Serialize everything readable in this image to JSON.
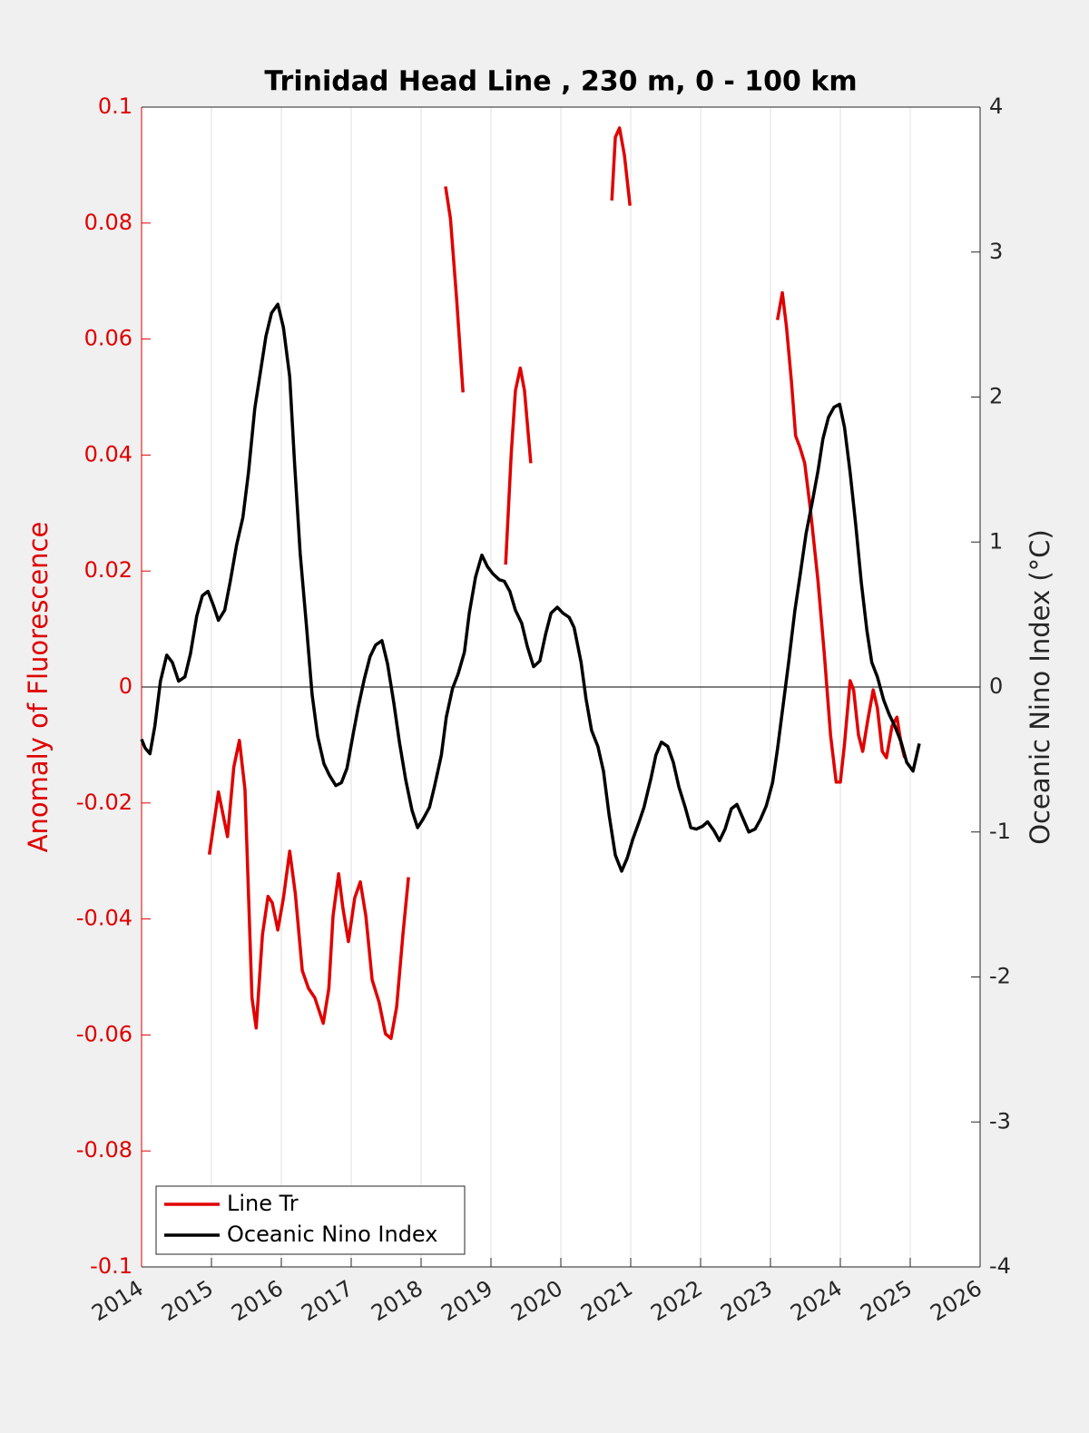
{
  "chart_data": {
    "type": "line",
    "title": "Trinidad Head Line , 230 m, 0 - 100 km",
    "ylabel": "Anomaly of Fluorescence",
    "y2label": "Oceanic Nino Index (°C)",
    "xlim": [
      2014,
      2026
    ],
    "xticks": [
      2014,
      2015,
      2016,
      2017,
      2018,
      2019,
      2020,
      2021,
      2022,
      2023,
      2024,
      2025,
      2026
    ],
    "ylim": [
      -0.1,
      0.1
    ],
    "yticks": [
      -0.1,
      -0.08,
      -0.06,
      -0.04,
      -0.02,
      0,
      0.02,
      0.04,
      0.06,
      0.08,
      0.1
    ],
    "y2lim": [
      -4,
      4
    ],
    "y2ticks": [
      -4,
      -3,
      -2,
      -1,
      0,
      1,
      2,
      3,
      4
    ],
    "xgrid": true,
    "reference_line": 0,
    "legend": "lower left",
    "series": [
      {
        "name": "Line Tr",
        "color": "#e00000",
        "axis": "y",
        "x": [
          2014.97,
          2015.1,
          2015.23,
          2015.32,
          2015.4,
          2015.48,
          2015.58,
          2015.64,
          2015.73,
          2015.81,
          2015.87,
          2015.95,
          2016.03,
          2016.12,
          2016.2,
          2016.3,
          2016.39,
          2016.48,
          2016.6,
          2016.68,
          2016.74,
          2016.82,
          2016.88,
          2016.96,
          2017.05,
          2017.13,
          2017.21,
          2017.3,
          2017.4,
          2017.49,
          2017.57,
          2017.65,
          2017.74,
          2017.82,
          2018.1,
          2018.35,
          2018.42,
          2018.51,
          2018.6,
          2018.9,
          2019.21,
          2019.29,
          2019.35,
          2019.42,
          2019.48,
          2019.57,
          2020.1,
          2020.73,
          2020.78,
          2020.84,
          2020.91,
          2020.99,
          2022.0,
          2023.1,
          2023.17,
          2023.23,
          2023.3,
          2023.36,
          2023.42,
          2023.49,
          2023.57,
          2023.68,
          2023.77,
          2023.86,
          2023.94,
          2024.0,
          2024.06,
          2024.14,
          2024.19,
          2024.26,
          2024.32,
          2024.39,
          2024.47,
          2024.53,
          2024.6,
          2024.66,
          2024.74,
          2024.81,
          2024.87,
          2024.92
        ],
        "values": [
          -0.0289,
          -0.0181,
          -0.0258,
          -0.0138,
          -0.0092,
          -0.0177,
          -0.0536,
          -0.0588,
          -0.0427,
          -0.0361,
          -0.0372,
          -0.0419,
          -0.0364,
          -0.0283,
          -0.0356,
          -0.0489,
          -0.052,
          -0.0536,
          -0.058,
          -0.052,
          -0.0395,
          -0.0322,
          -0.038,
          -0.0439,
          -0.0364,
          -0.0336,
          -0.0395,
          -0.0505,
          -0.0544,
          -0.0598,
          -0.0606,
          -0.0552,
          -0.0427,
          -0.0328,
          null,
          0.0863,
          0.0808,
          0.0667,
          0.0508,
          null,
          0.0211,
          0.0402,
          0.0511,
          0.055,
          0.0511,
          0.0386,
          null,
          0.0839,
          0.0948,
          0.0964,
          0.0917,
          0.083,
          null,
          0.0633,
          0.068,
          0.062,
          0.0527,
          0.0433,
          0.0414,
          0.0386,
          0.0308,
          0.0183,
          0.0058,
          -0.0083,
          -0.0164,
          -0.0164,
          -0.0098,
          0.0011,
          -0.0005,
          -0.0083,
          -0.0111,
          -0.0059,
          -0.0005,
          -0.0036,
          -0.0111,
          -0.0122,
          -0.0067,
          -0.0052,
          -0.0098,
          -0.0122
        ]
      },
      {
        "name": "Oceanic Nino Index",
        "color": "#000000",
        "axis": "y2",
        "x": [
          2014.0,
          2014.05,
          2014.12,
          2014.19,
          2014.27,
          2014.36,
          2014.44,
          2014.53,
          2014.62,
          2014.7,
          2014.79,
          2014.87,
          2014.95,
          2015.03,
          2015.1,
          2015.19,
          2015.27,
          2015.36,
          2015.45,
          2015.53,
          2015.62,
          2015.7,
          2015.78,
          2015.86,
          2015.95,
          2016.03,
          2016.12,
          2016.19,
          2016.27,
          2016.36,
          2016.44,
          2016.52,
          2016.61,
          2016.69,
          2016.78,
          2016.86,
          2016.94,
          2017.03,
          2017.1,
          2017.19,
          2017.27,
          2017.35,
          2017.44,
          2017.52,
          2017.61,
          2017.69,
          2017.78,
          2017.87,
          2017.95,
          2018.03,
          2018.12,
          2018.19,
          2018.29,
          2018.36,
          2018.45,
          2018.53,
          2018.62,
          2018.69,
          2018.78,
          2018.87,
          2018.95,
          2019.03,
          2019.12,
          2019.19,
          2019.27,
          2019.35,
          2019.44,
          2019.52,
          2019.61,
          2019.7,
          2019.78,
          2019.86,
          2019.95,
          2020.03,
          2020.12,
          2020.19,
          2020.29,
          2020.36,
          2020.44,
          2020.53,
          2020.61,
          2020.69,
          2020.78,
          2020.87,
          2020.95,
          2021.03,
          2021.12,
          2021.19,
          2021.29,
          2021.36,
          2021.44,
          2021.53,
          2021.61,
          2021.69,
          2021.78,
          2021.86,
          2021.94,
          2022.03,
          2022.1,
          2022.19,
          2022.27,
          2022.35,
          2022.44,
          2022.52,
          2022.61,
          2022.69,
          2022.78,
          2022.86,
          2022.94,
          2023.03,
          2023.1,
          2023.18,
          2023.26,
          2023.35,
          2023.43,
          2023.51,
          2023.6,
          2023.68,
          2023.75,
          2023.83,
          2023.91,
          2023.99,
          2024.06,
          2024.14,
          2024.22,
          2024.3,
          2024.38,
          2024.45,
          2024.53,
          2024.62,
          2024.7,
          2024.78,
          2024.87,
          2024.95,
          2025.04,
          2025.13
        ],
        "values": [
          -0.36,
          -0.42,
          -0.46,
          -0.27,
          0.04,
          0.22,
          0.17,
          0.04,
          0.07,
          0.23,
          0.49,
          0.63,
          0.66,
          0.56,
          0.46,
          0.53,
          0.73,
          0.98,
          1.17,
          1.48,
          1.92,
          2.17,
          2.42,
          2.58,
          2.64,
          2.48,
          2.14,
          1.54,
          0.92,
          0.42,
          -0.05,
          -0.34,
          -0.53,
          -0.61,
          -0.68,
          -0.66,
          -0.56,
          -0.32,
          -0.14,
          0.06,
          0.21,
          0.29,
          0.32,
          0.16,
          -0.11,
          -0.38,
          -0.64,
          -0.85,
          -0.97,
          -0.91,
          -0.83,
          -0.69,
          -0.47,
          -0.21,
          -0.01,
          0.09,
          0.24,
          0.51,
          0.76,
          0.91,
          0.83,
          0.78,
          0.74,
          0.73,
          0.66,
          0.53,
          0.44,
          0.28,
          0.14,
          0.18,
          0.36,
          0.51,
          0.55,
          0.51,
          0.48,
          0.41,
          0.17,
          -0.08,
          -0.3,
          -0.41,
          -0.58,
          -0.88,
          -1.16,
          -1.27,
          -1.18,
          -1.05,
          -0.93,
          -0.83,
          -0.63,
          -0.47,
          -0.38,
          -0.41,
          -0.52,
          -0.69,
          -0.83,
          -0.97,
          -0.98,
          -0.96,
          -0.93,
          -0.99,
          -1.06,
          -0.98,
          -0.84,
          -0.81,
          -0.91,
          -1.0,
          -0.98,
          -0.91,
          -0.82,
          -0.66,
          -0.43,
          -0.13,
          0.17,
          0.53,
          0.79,
          1.06,
          1.28,
          1.49,
          1.71,
          1.86,
          1.93,
          1.95,
          1.79,
          1.48,
          1.12,
          0.72,
          0.39,
          0.17,
          0.07,
          -0.09,
          -0.19,
          -0.27,
          -0.38,
          -0.52,
          -0.58,
          -0.39
        ]
      }
    ]
  }
}
